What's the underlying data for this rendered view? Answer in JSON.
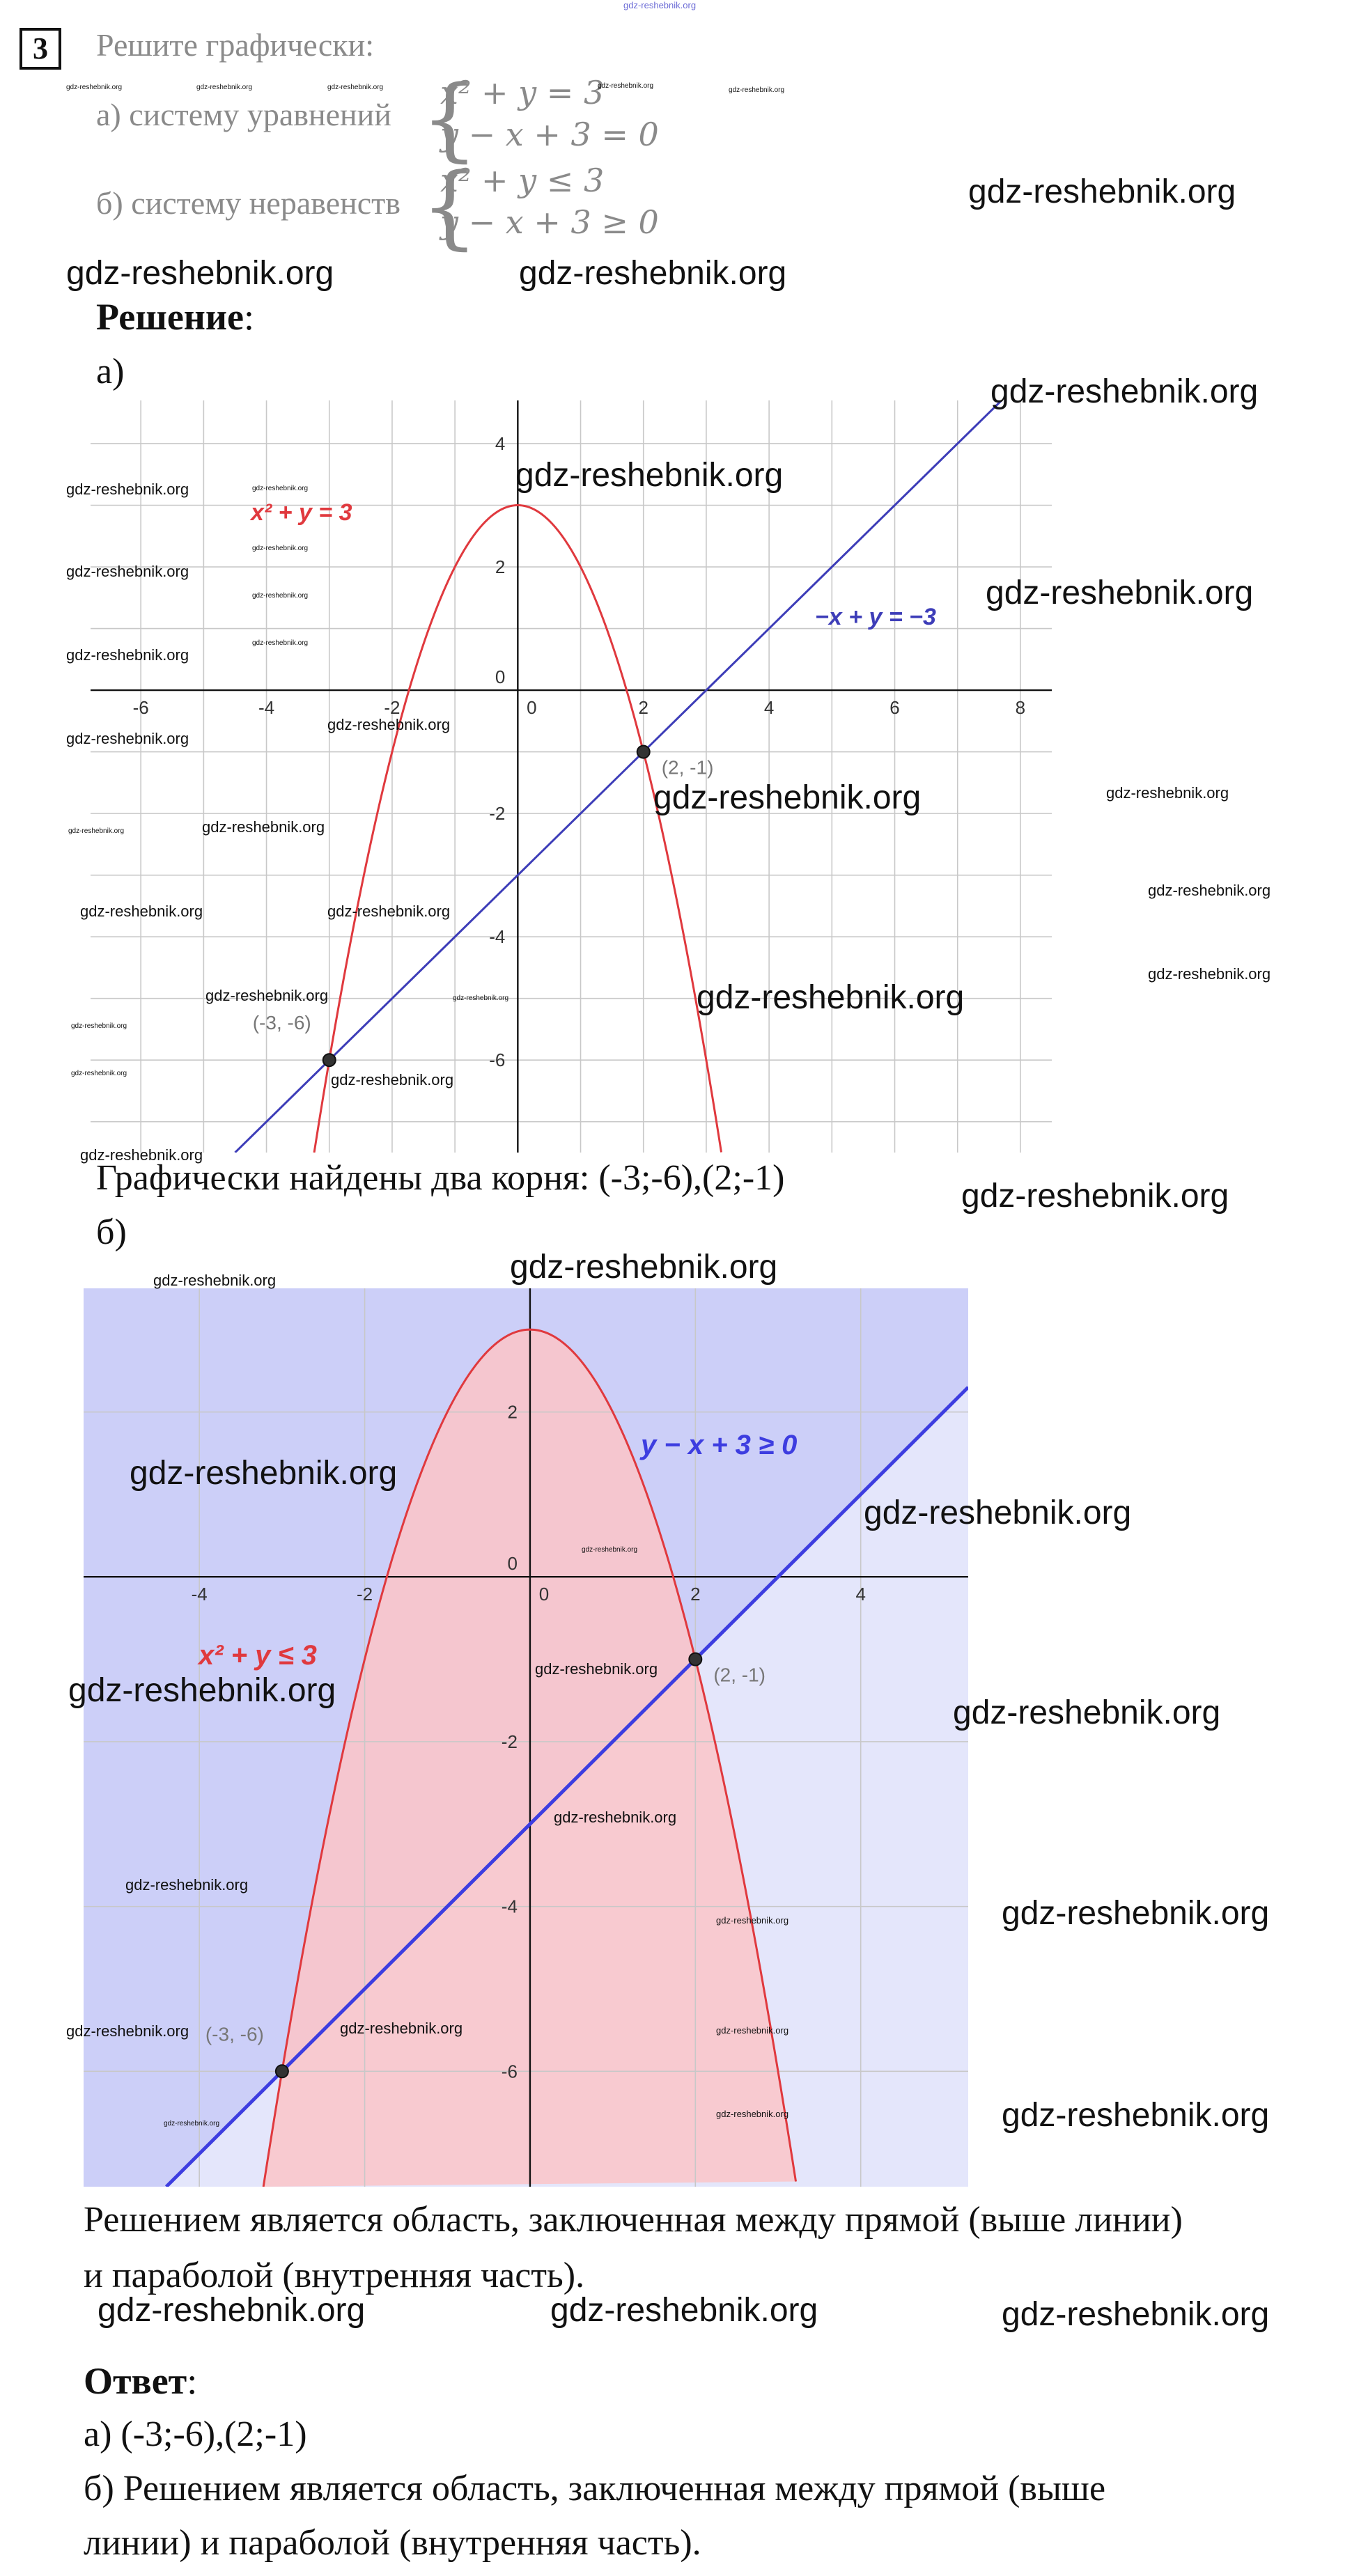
{
  "header_watermark": "gdz-reshebnik.org",
  "task": {
    "number": "3",
    "title": "Решите графически:",
    "part_a_label": "а) систему уравнений",
    "part_a_eq1": "x² + y = 3",
    "part_a_eq2": "y − x + 3 = 0",
    "part_b_label": "б) систему неравенств",
    "part_b_ineq1": "x² + y ≤ 3",
    "part_b_ineq2": "y − x + 3 ≥ 0"
  },
  "solution": {
    "heading": "Решение",
    "heading_colon": ":",
    "part_a": "а)",
    "result_a": "Графически найдены два корня: (-3;-6),(2;-1)",
    "part_b": "б)",
    "result_b_line1": "Решением является область, заключенная между прямой (выше линии)",
    "result_b_line2": "и параболой (внутренняя часть)."
  },
  "answer": {
    "heading": "Ответ",
    "heading_colon": ":",
    "line_a": "а) (-3;-6),(2;-1)",
    "line_b1": "б) Решением является область, заключенная между прямой (выше",
    "line_b2": "линии) и параболой (внутренняя часть)."
  },
  "watermark_text": "gdz-reshebnik.org",
  "chart_data": [
    {
      "type": "line",
      "title": "",
      "xlim": [
        -6.8,
        8.5
      ],
      "ylim": [
        -7.5,
        4.7
      ],
      "x_ticks": [
        -6,
        -4,
        -2,
        0,
        2,
        4,
        6,
        8
      ],
      "y_ticks": [
        -6,
        -4,
        -2,
        0,
        2,
        4
      ],
      "grid": true,
      "series": [
        {
          "name": "x² + y = 3",
          "function": "y = 3 - x^2",
          "color": "#e0393e"
        },
        {
          "name": "−x + y = −3",
          "function": "y = x - 3",
          "color": "#3d3db8"
        }
      ],
      "points": [
        {
          "x": 2,
          "y": -1,
          "label": "(2, -1)"
        },
        {
          "x": -3,
          "y": -6,
          "label": "(-3, -6)"
        }
      ],
      "annotations": [
        "x² + y = 3",
        "−x + y = −3"
      ]
    },
    {
      "type": "area",
      "title": "",
      "xlim": [
        -5.4,
        5.3
      ],
      "ylim": [
        -7.4,
        3.5
      ],
      "x_ticks": [
        -4,
        -2,
        0,
        2,
        4
      ],
      "y_ticks": [
        -6,
        -4,
        -2,
        0,
        2
      ],
      "grid": true,
      "series": [
        {
          "name": "x² + y ≤ 3",
          "function": "y ≤ 3 - x^2",
          "color": "#e0393e",
          "fill": "#fbc4c8"
        },
        {
          "name": "y − x + 3 ≥ 0",
          "function": "y ≥ x - 3",
          "color": "#3d3de0",
          "fill": "#c9ccf7"
        }
      ],
      "points": [
        {
          "x": 2,
          "y": -1,
          "label": "(2, -1)"
        },
        {
          "x": -3,
          "y": -6,
          "label": "(-3, -6)"
        }
      ],
      "annotations": [
        "x² + y ≤ 3",
        "y − x + 3 ≥ 0"
      ]
    }
  ]
}
